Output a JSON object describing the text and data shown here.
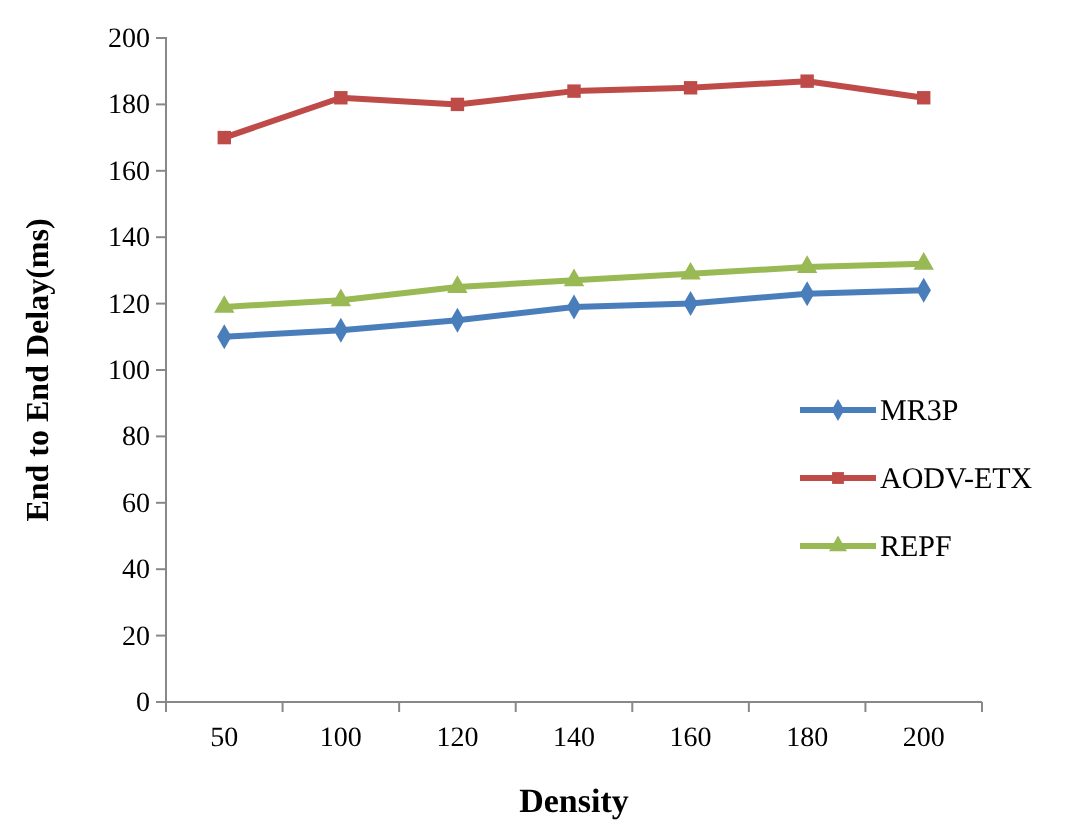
{
  "chart_data": {
    "type": "line",
    "xlabel": "Density",
    "ylabel": "End to End Delay(ms)",
    "categories": [
      "50",
      "100",
      "120",
      "140",
      "160",
      "180",
      "200"
    ],
    "ylim": [
      0,
      200
    ],
    "yticks": [
      0,
      20,
      40,
      60,
      80,
      100,
      120,
      140,
      160,
      180,
      200
    ],
    "grid": false,
    "legend": "right",
    "line_style": "solid",
    "series": [
      {
        "name": "MR3P",
        "color": "#4a7ebb",
        "marker": "diamond",
        "values": [
          110,
          112,
          115,
          119,
          120,
          123,
          124
        ]
      },
      {
        "name": "AODV-ETX",
        "color": "#be4b48",
        "marker": "square",
        "values": [
          170,
          182,
          180,
          184,
          185,
          187,
          182
        ]
      },
      {
        "name": "REPF",
        "color": "#98b954",
        "marker": "triangle",
        "values": [
          119,
          121,
          125,
          127,
          129,
          131,
          132
        ]
      }
    ]
  }
}
